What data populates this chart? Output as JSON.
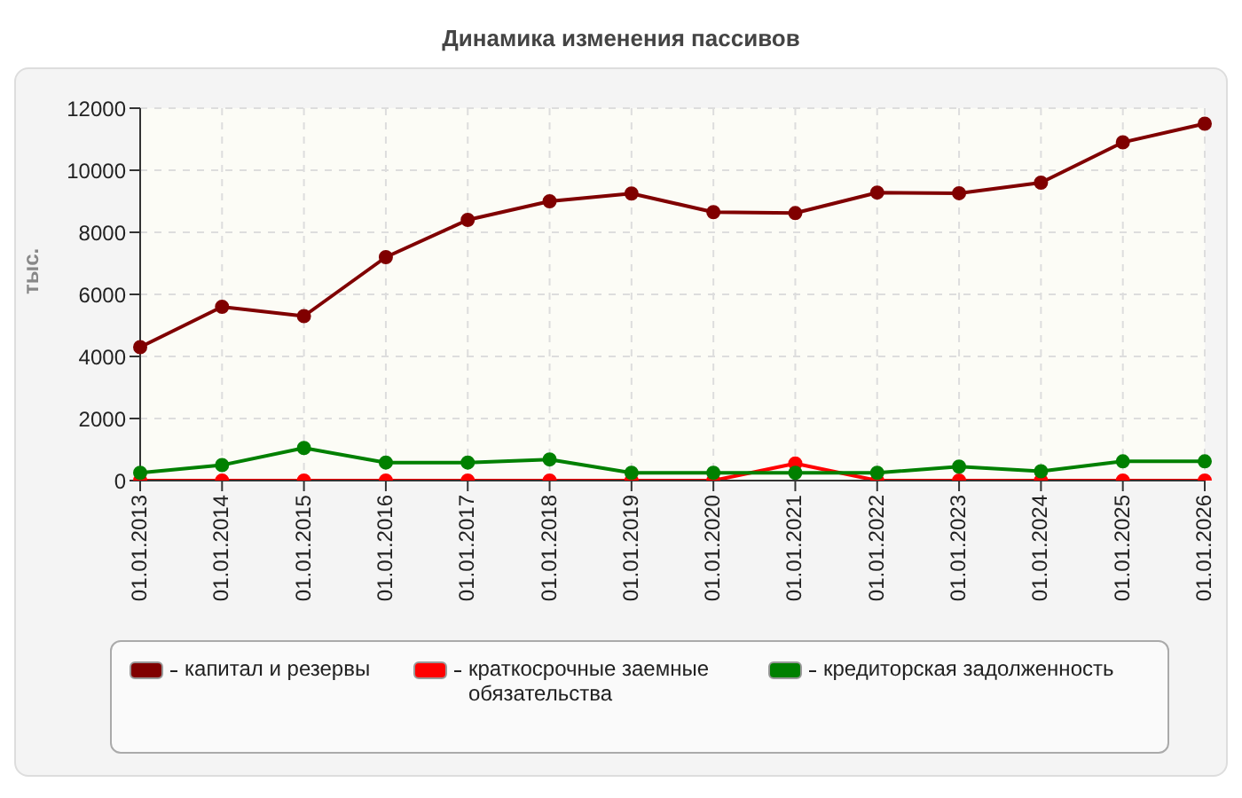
{
  "chart_data": {
    "type": "line",
    "title": "Динамика изменения пассивов",
    "ylabel": "тыс.",
    "categories": [
      "01.01.2013",
      "01.01.2014",
      "01.01.2015",
      "01.01.2016",
      "01.01.2017",
      "01.01.2018",
      "01.01.2019",
      "01.01.2020",
      "01.01.2021",
      "01.01.2022",
      "01.01.2023",
      "01.01.2024",
      "01.01.2025",
      "01.01.2026"
    ],
    "series": [
      {
        "name": "капитал и резервы",
        "color": "#800000",
        "values": [
          4300,
          5600,
          5300,
          7200,
          8400,
          9000,
          9250,
          8650,
          8620,
          9280,
          9260,
          9600,
          10900,
          11500
        ]
      },
      {
        "name": "краткосрочные заемные обязательства",
        "color": "#ff0000",
        "values": [
          0,
          0,
          0,
          0,
          0,
          0,
          0,
          0,
          550,
          0,
          0,
          0,
          0,
          0
        ]
      },
      {
        "name": "кредиторская задолженность",
        "color": "#008000",
        "values": [
          250,
          500,
          1050,
          580,
          580,
          680,
          250,
          250,
          250,
          250,
          450,
          300,
          620,
          620
        ]
      }
    ],
    "ylim": [
      0,
      12000
    ],
    "yticks": [
      0,
      2000,
      4000,
      6000,
      8000,
      10000,
      12000
    ],
    "grid": true,
    "legend": "bottom",
    "marker": "circle",
    "line_style": "solid"
  }
}
